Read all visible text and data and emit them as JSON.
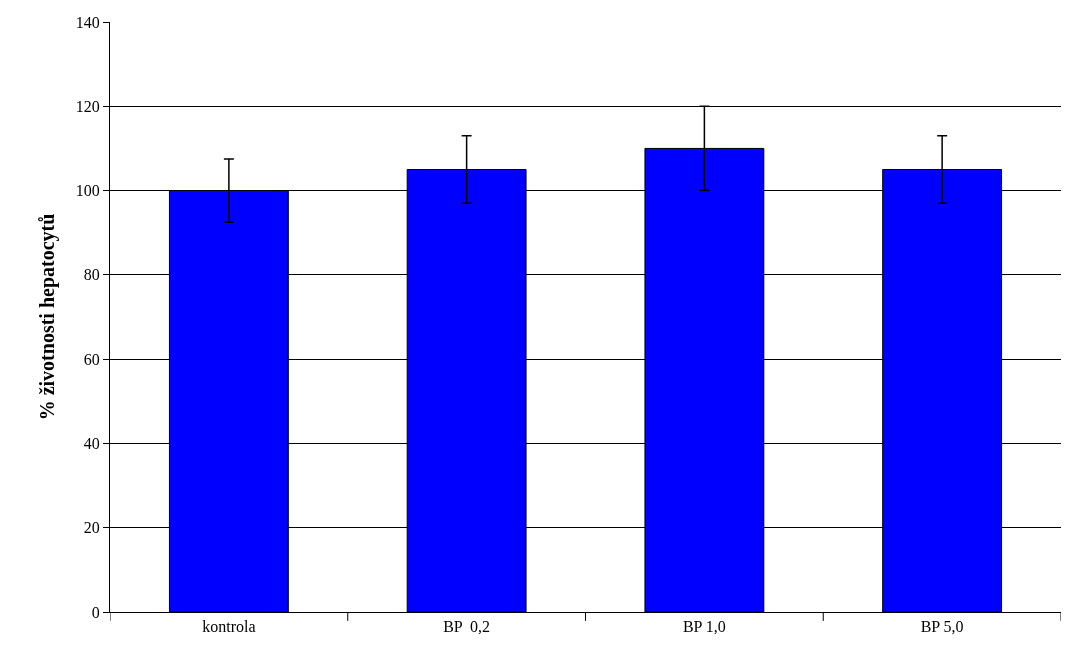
{
  "chart_data": {
    "type": "bar",
    "ylabel": "% životnosti hepatocytů",
    "categories": [
      "kontrola",
      "BP  0,2",
      "BP 1,0",
      "BP 5,0"
    ],
    "values": [
      100,
      105,
      110,
      105
    ],
    "errors": [
      7.5,
      8,
      10,
      8
    ],
    "color": "#0000ff",
    "ylim": [
      0,
      140
    ],
    "yticks": [
      0,
      20,
      40,
      60,
      80,
      100,
      120,
      140
    ],
    "grid": "y"
  }
}
